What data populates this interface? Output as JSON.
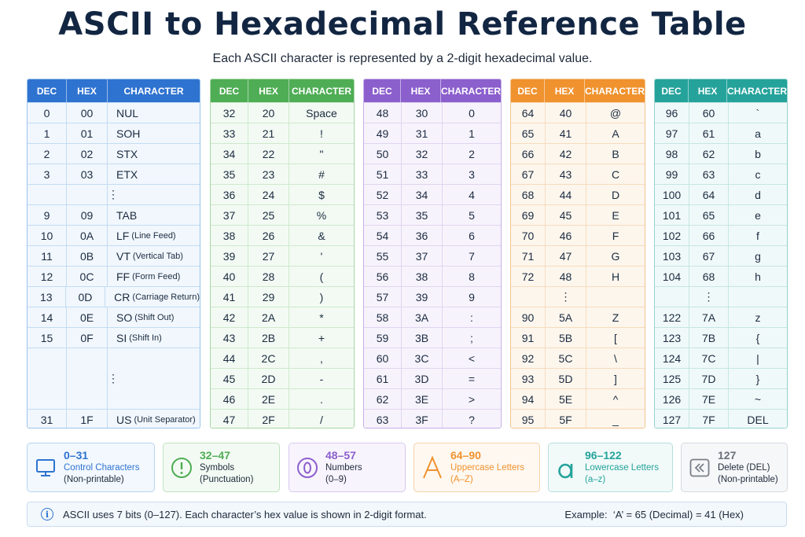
{
  "title": "ASCII to Hexadecimal Reference Table",
  "subtitle": "Each ASCII character is represented by a 2-digit hexadecimal value.",
  "headers": {
    "dec": "DEC",
    "hex": "HEX",
    "character": "CHARACTER"
  },
  "colors": {
    "control": "#2f73d0",
    "symbols": "#4fad55",
    "numbers": "#8b5fcc",
    "uppercase": "#f0922e",
    "lowercase": "#25a39b",
    "delete": "#7a8088"
  },
  "ellipsis": "⋮",
  "tables": [
    {
      "id": "control",
      "rows": [
        {
          "dec": "0",
          "hex": "00",
          "char": "NUL",
          "note": ""
        },
        {
          "dec": "1",
          "hex": "01",
          "char": "SOH",
          "note": ""
        },
        {
          "dec": "2",
          "hex": "02",
          "char": "STX",
          "note": ""
        },
        {
          "dec": "3",
          "hex": "03",
          "char": "ETX",
          "note": ""
        },
        {
          "dec": "9",
          "hex": "09",
          "char": "TAB",
          "note": ""
        },
        {
          "dec": "10",
          "hex": "0A",
          "char": "LF",
          "note": "(Line Feed)"
        },
        {
          "dec": "11",
          "hex": "0B",
          "char": "VT",
          "note": "(Vertical Tab)"
        },
        {
          "dec": "12",
          "hex": "0C",
          "char": "FF",
          "note": "(Form Feed)"
        },
        {
          "dec": "13",
          "hex": "0D",
          "char": "CR",
          "note": "(Carriage Return)"
        },
        {
          "dec": "14",
          "hex": "0E",
          "char": "SO",
          "note": "(Shift Out)"
        },
        {
          "dec": "15",
          "hex": "0F",
          "char": "SI",
          "note": "(Shift In)"
        },
        {
          "dec": "31",
          "hex": "1F",
          "char": "US",
          "note": "(Unit Separator)"
        }
      ]
    },
    {
      "id": "symbols",
      "rows": [
        {
          "dec": "32",
          "hex": "20",
          "char": "Space"
        },
        {
          "dec": "33",
          "hex": "21",
          "char": "!"
        },
        {
          "dec": "34",
          "hex": "22",
          "char": "\""
        },
        {
          "dec": "35",
          "hex": "23",
          "char": "#"
        },
        {
          "dec": "36",
          "hex": "24",
          "char": "$"
        },
        {
          "dec": "37",
          "hex": "25",
          "char": "%"
        },
        {
          "dec": "38",
          "hex": "26",
          "char": "&"
        },
        {
          "dec": "39",
          "hex": "27",
          "char": "'"
        },
        {
          "dec": "40",
          "hex": "28",
          "char": "("
        },
        {
          "dec": "41",
          "hex": "29",
          "char": ")"
        },
        {
          "dec": "42",
          "hex": "2A",
          "char": "*"
        },
        {
          "dec": "43",
          "hex": "2B",
          "char": "+"
        },
        {
          "dec": "44",
          "hex": "2C",
          "char": ","
        },
        {
          "dec": "45",
          "hex": "2D",
          "char": "-"
        },
        {
          "dec": "46",
          "hex": "2E",
          "char": "."
        },
        {
          "dec": "47",
          "hex": "2F",
          "char": "/"
        }
      ]
    },
    {
      "id": "numbers",
      "rows": [
        {
          "dec": "48",
          "hex": "30",
          "char": "0"
        },
        {
          "dec": "49",
          "hex": "31",
          "char": "1"
        },
        {
          "dec": "50",
          "hex": "32",
          "char": "2"
        },
        {
          "dec": "51",
          "hex": "33",
          "char": "3"
        },
        {
          "dec": "52",
          "hex": "34",
          "char": "4"
        },
        {
          "dec": "53",
          "hex": "35",
          "char": "5"
        },
        {
          "dec": "54",
          "hex": "36",
          "char": "6"
        },
        {
          "dec": "55",
          "hex": "37",
          "char": "7"
        },
        {
          "dec": "56",
          "hex": "38",
          "char": "8"
        },
        {
          "dec": "57",
          "hex": "39",
          "char": "9"
        },
        {
          "dec": "58",
          "hex": "3A",
          "char": ":"
        },
        {
          "dec": "59",
          "hex": "3B",
          "char": ";"
        },
        {
          "dec": "60",
          "hex": "3C",
          "char": "<"
        },
        {
          "dec": "61",
          "hex": "3D",
          "char": "="
        },
        {
          "dec": "62",
          "hex": "3E",
          "char": ">"
        },
        {
          "dec": "63",
          "hex": "3F",
          "char": "?"
        }
      ]
    },
    {
      "id": "uppercase",
      "rows": [
        {
          "dec": "64",
          "hex": "40",
          "char": "@"
        },
        {
          "dec": "65",
          "hex": "41",
          "char": "A"
        },
        {
          "dec": "66",
          "hex": "42",
          "char": "B"
        },
        {
          "dec": "67",
          "hex": "43",
          "char": "C"
        },
        {
          "dec": "68",
          "hex": "44",
          "char": "D"
        },
        {
          "dec": "69",
          "hex": "45",
          "char": "E"
        },
        {
          "dec": "70",
          "hex": "46",
          "char": "F"
        },
        {
          "dec": "71",
          "hex": "47",
          "char": "G"
        },
        {
          "dec": "72",
          "hex": "48",
          "char": "H"
        },
        {
          "dec": "90",
          "hex": "5A",
          "char": "Z"
        },
        {
          "dec": "91",
          "hex": "5B",
          "char": "["
        },
        {
          "dec": "92",
          "hex": "5C",
          "char": "\\"
        },
        {
          "dec": "93",
          "hex": "5D",
          "char": "]"
        },
        {
          "dec": "94",
          "hex": "5E",
          "char": "^"
        },
        {
          "dec": "95",
          "hex": "5F",
          "char": "_"
        }
      ]
    },
    {
      "id": "lowercase",
      "rows": [
        {
          "dec": "96",
          "hex": "60",
          "char": "`"
        },
        {
          "dec": "97",
          "hex": "61",
          "char": "a"
        },
        {
          "dec": "98",
          "hex": "62",
          "char": "b"
        },
        {
          "dec": "99",
          "hex": "63",
          "char": "c"
        },
        {
          "dec": "100",
          "hex": "64",
          "char": "d"
        },
        {
          "dec": "101",
          "hex": "65",
          "char": "e"
        },
        {
          "dec": "102",
          "hex": "66",
          "char": "f"
        },
        {
          "dec": "103",
          "hex": "67",
          "char": "g"
        },
        {
          "dec": "104",
          "hex": "68",
          "char": "h"
        },
        {
          "dec": "122",
          "hex": "7A",
          "char": "z"
        },
        {
          "dec": "123",
          "hex": "7B",
          "char": "{"
        },
        {
          "dec": "124",
          "hex": "7C",
          "char": "|"
        },
        {
          "dec": "125",
          "hex": "7D",
          "char": "}"
        },
        {
          "dec": "126",
          "hex": "7E",
          "char": "~"
        },
        {
          "dec": "127",
          "hex": "7F",
          "char": "DEL"
        }
      ]
    }
  ],
  "legend": [
    {
      "range": "0–31",
      "name": "Control Characters",
      "desc": "(Non-printable)",
      "icon": "monitor-icon"
    },
    {
      "range": "32–47",
      "name": "Symbols",
      "desc": "(Punctuation)",
      "icon": "exclamation-icon"
    },
    {
      "range": "48–57",
      "name": "Numbers",
      "desc": "(0–9)",
      "icon": "digit-zero-icon"
    },
    {
      "range": "64–90",
      "name": "Uppercase Letters",
      "desc": "(A–Z)",
      "icon": "letter-a-icon"
    },
    {
      "range": "96–122",
      "name": "Lowercase Letters",
      "desc": "(a–z)",
      "icon": "letter-a-lowercase-icon"
    },
    {
      "range": "127",
      "name": "Delete (DEL)",
      "desc": "(Non-printable)",
      "icon": "backspace-icon"
    }
  ],
  "footer": {
    "info_icon": "i",
    "note": "ASCII uses 7 bits (0–127). Each character’s hex value is shown in 2-digit format.",
    "example": "Example:  ‘A’ = 65 (Decimal) = 41 (Hex)"
  }
}
